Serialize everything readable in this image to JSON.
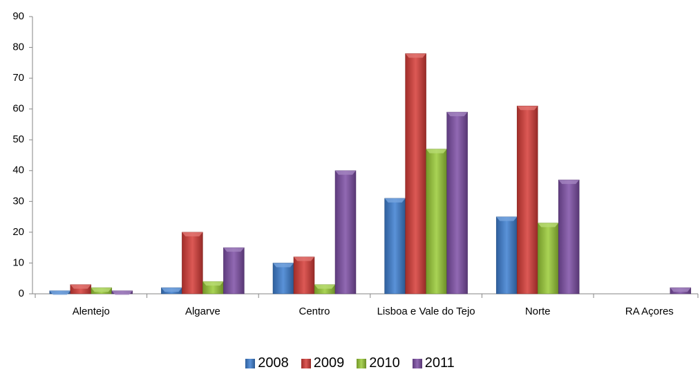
{
  "chart_data": {
    "type": "bar",
    "categories": [
      "Alentejo",
      "Algarve",
      "Centro",
      "Lisboa e Vale do Tejo",
      "Norte",
      "RA Açores"
    ],
    "series": [
      {
        "name": "2008",
        "color": "#3d7fd1",
        "values": [
          1,
          2,
          10,
          31,
          25,
          0
        ]
      },
      {
        "name": "2009",
        "color": "#d63c37",
        "values": [
          3,
          20,
          12,
          78,
          61,
          0
        ]
      },
      {
        "name": "2010",
        "color": "#9acb37",
        "values": [
          2,
          4,
          3,
          47,
          23,
          0
        ]
      },
      {
        "name": "2011",
        "color": "#7d4fa6",
        "values": [
          1,
          15,
          40,
          59,
          37,
          2
        ]
      }
    ],
    "ylim": [
      0,
      90
    ],
    "yticks": [
      0,
      10,
      20,
      30,
      40,
      50,
      60,
      70,
      80,
      90
    ],
    "grid": false,
    "legend": "bottom"
  }
}
